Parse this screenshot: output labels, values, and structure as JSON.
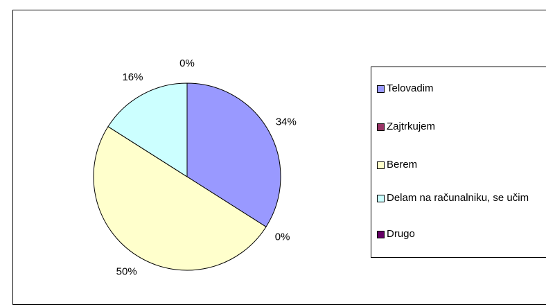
{
  "chart_data": {
    "type": "pie",
    "categories": [
      "Telovadim",
      "Zajtrkujem",
      "Berem",
      "Delam na računalniku, se učim",
      "Drugo"
    ],
    "values": [
      34,
      0,
      50,
      16,
      0
    ],
    "value_labels": [
      "34%",
      "0%",
      "50%",
      "16%",
      "0%"
    ],
    "colors": [
      "#9999ff",
      "#993366",
      "#ffffcc",
      "#ccffff",
      "#660066"
    ],
    "legend": "right"
  }
}
